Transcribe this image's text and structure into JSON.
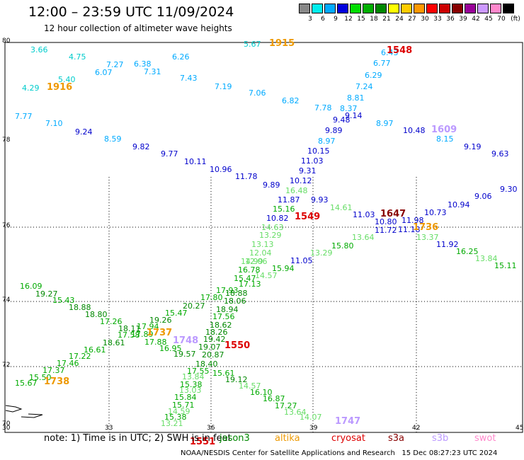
{
  "title": "12:00 – 23:59 UTC 11/09/2024",
  "subtitle": "12 hour collection of altimeter wave heights",
  "scale": {
    "labels": [
      "3",
      "6",
      "9",
      "12",
      "15",
      "18",
      "21",
      "24",
      "27",
      "30",
      "33",
      "36",
      "39",
      "42",
      "45",
      "70"
    ],
    "unit": "(ft)",
    "colors": [
      "#888888",
      "#00eeee",
      "#00aaff",
      "#0000dd",
      "#00dd00",
      "#00b000",
      "#008800",
      "#ffff00",
      "#ffcc00",
      "#ff9900",
      "#ff0000",
      "#cc0000",
      "#880000",
      "#990099",
      "#cc99ff",
      "#ff88cc",
      "#000000"
    ]
  },
  "axes": {
    "lon": [
      "30",
      "33",
      "36",
      "39",
      "42",
      "45"
    ],
    "lat": [
      "80",
      "78",
      "76",
      "74",
      "72",
      "70"
    ]
  },
  "observations": [
    {
      "v": "3.66",
      "c": "#00cccc"
    },
    {
      "v": "4.75",
      "c": "#00cccc"
    },
    {
      "v": "7.27",
      "c": "#00aaff"
    },
    {
      "v": "6.38",
      "c": "#00aaff"
    },
    {
      "v": "6.26",
      "c": "#00aaff"
    },
    {
      "v": "5.67",
      "c": "#00cccc"
    },
    {
      "v": "6.07",
      "c": "#00aaff"
    },
    {
      "v": "7.31",
      "c": "#00aaff"
    },
    {
      "v": "5.40",
      "c": "#00cccc"
    },
    {
      "v": "4.29",
      "c": "#00cccc"
    },
    {
      "v": "7.43",
      "c": "#00aaff"
    },
    {
      "v": "7.19",
      "c": "#00aaff"
    },
    {
      "v": "7.06",
      "c": "#00aaff"
    },
    {
      "v": "6.82",
      "c": "#00aaff"
    },
    {
      "v": "7.77",
      "c": "#00aaff"
    },
    {
      "v": "7.10",
      "c": "#00aaff"
    },
    {
      "v": "6.43",
      "c": "#00aaff"
    },
    {
      "v": "6.77",
      "c": "#00aaff"
    },
    {
      "v": "6.29",
      "c": "#00aaff"
    },
    {
      "v": "7.24",
      "c": "#00aaff"
    },
    {
      "v": "8.81",
      "c": "#00aaff"
    },
    {
      "v": "7.78",
      "c": "#00aaff"
    },
    {
      "v": "8.37",
      "c": "#00aaff"
    },
    {
      "v": "9.14",
      "c": "#0000cc"
    },
    {
      "v": "9.48",
      "c": "#0000cc"
    },
    {
      "v": "8.97",
      "c": "#00aaff"
    },
    {
      "v": "9.89",
      "c": "#0000cc"
    },
    {
      "v": "8.97",
      "c": "#00aaff"
    },
    {
      "v": "9.24",
      "c": "#0000cc"
    },
    {
      "v": "8.59",
      "c": "#00aaff"
    },
    {
      "v": "9.82",
      "c": "#0000cc"
    },
    {
      "v": "9.77",
      "c": "#0000cc"
    },
    {
      "v": "10.11",
      "c": "#0000cc"
    },
    {
      "v": "10.96",
      "c": "#0000cc"
    },
    {
      "v": "11.78",
      "c": "#0000cc"
    },
    {
      "v": "10.15",
      "c": "#0000cc"
    },
    {
      "v": "11.03",
      "c": "#0000cc"
    },
    {
      "v": "9.31",
      "c": "#0000cc"
    },
    {
      "v": "10.12",
      "c": "#0000cc"
    },
    {
      "v": "9.89",
      "c": "#0000cc"
    },
    {
      "v": "10.48",
      "c": "#0000cc"
    },
    {
      "v": "8.15",
      "c": "#00aaff"
    },
    {
      "v": "9.19",
      "c": "#0000cc"
    },
    {
      "v": "9.63",
      "c": "#0000cc"
    },
    {
      "v": "16.48",
      "c": "#66dd66"
    },
    {
      "v": "11.87",
      "c": "#0000cc"
    },
    {
      "v": "9.93",
      "c": "#0000cc"
    },
    {
      "v": "15.16",
      "c": "#00aa00"
    },
    {
      "v": "14.61",
      "c": "#66dd66"
    },
    {
      "v": "10.82",
      "c": "#0000cc"
    },
    {
      "v": "11.03",
      "c": "#0000cc"
    },
    {
      "v": "10.80",
      "c": "#0000cc"
    },
    {
      "v": "11.98",
      "c": "#0000cc"
    },
    {
      "v": "10.73",
      "c": "#0000cc"
    },
    {
      "v": "10.94",
      "c": "#0000cc"
    },
    {
      "v": "9.06",
      "c": "#0000cc"
    },
    {
      "v": "9.30",
      "c": "#0000cc"
    },
    {
      "v": "14.63",
      "c": "#66dd66"
    },
    {
      "v": "11.72",
      "c": "#0000cc"
    },
    {
      "v": "11.18",
      "c": "#0000cc"
    },
    {
      "v": "13.29",
      "c": "#66dd66"
    },
    {
      "v": "13.64",
      "c": "#66dd66"
    },
    {
      "v": "13.37",
      "c": "#66dd66"
    },
    {
      "v": "13.13",
      "c": "#66dd66"
    },
    {
      "v": "15.80",
      "c": "#00aa00"
    },
    {
      "v": "11.92",
      "c": "#0000cc"
    },
    {
      "v": "12.04",
      "c": "#66dd66"
    },
    {
      "v": "13.29",
      "c": "#66dd66"
    },
    {
      "v": "16.25",
      "c": "#00aa00"
    },
    {
      "v": "12.06",
      "c": "#66dd66"
    },
    {
      "v": "13.84",
      "c": "#66dd66"
    },
    {
      "v": "14.99",
      "c": "#66dd66"
    },
    {
      "v": "11.05",
      "c": "#0000cc"
    },
    {
      "v": "15.11",
      "c": "#00aa00"
    },
    {
      "v": "16.78",
      "c": "#00aa00"
    },
    {
      "v": "15.94",
      "c": "#00aa00"
    },
    {
      "v": "15.47",
      "c": "#00aa00"
    },
    {
      "v": "14.57",
      "c": "#66dd66"
    },
    {
      "v": "17.13",
      "c": "#00aa00"
    },
    {
      "v": "16.09",
      "c": "#00aa00"
    },
    {
      "v": "17.93",
      "c": "#00aa00"
    },
    {
      "v": "19.27",
      "c": "#008800"
    },
    {
      "v": "18.88",
      "c": "#008800"
    },
    {
      "v": "17.80",
      "c": "#00aa00"
    },
    {
      "v": "15.43",
      "c": "#00aa00"
    },
    {
      "v": "18.06",
      "c": "#008800"
    },
    {
      "v": "18.88",
      "c": "#008800"
    },
    {
      "v": "20.27",
      "c": "#008800"
    },
    {
      "v": "18.94",
      "c": "#008800"
    },
    {
      "v": "18.80",
      "c": "#008800"
    },
    {
      "v": "15.47",
      "c": "#00aa00"
    },
    {
      "v": "17.56",
      "c": "#00aa00"
    },
    {
      "v": "17.26",
      "c": "#00aa00"
    },
    {
      "v": "19.26",
      "c": "#008800"
    },
    {
      "v": "18.62",
      "c": "#008800"
    },
    {
      "v": "18.11",
      "c": "#008800"
    },
    {
      "v": "17.94",
      "c": "#00aa00"
    },
    {
      "v": "17.58",
      "c": "#00aa00"
    },
    {
      "v": "17.89",
      "c": "#00aa00"
    },
    {
      "v": "18.26",
      "c": "#008800"
    },
    {
      "v": "18.61",
      "c": "#008800"
    },
    {
      "v": "17.88",
      "c": "#00aa00"
    },
    {
      "v": "19.42",
      "c": "#008800"
    },
    {
      "v": "16.61",
      "c": "#00aa00"
    },
    {
      "v": "16.95",
      "c": "#00aa00"
    },
    {
      "v": "19.07",
      "c": "#008800"
    },
    {
      "v": "17.22",
      "c": "#00aa00"
    },
    {
      "v": "19.57",
      "c": "#008800"
    },
    {
      "v": "20.87",
      "c": "#008800"
    },
    {
      "v": "17.46",
      "c": "#00aa00"
    },
    {
      "v": "18.40",
      "c": "#008800"
    },
    {
      "v": "17.37",
      "c": "#00aa00"
    },
    {
      "v": "17.55",
      "c": "#00aa00"
    },
    {
      "v": "15.61",
      "c": "#00aa00"
    },
    {
      "v": "15.50",
      "c": "#00aa00"
    },
    {
      "v": "13.84",
      "c": "#66dd66"
    },
    {
      "v": "19.12",
      "c": "#008800"
    },
    {
      "v": "15.67",
      "c": "#00aa00"
    },
    {
      "v": "15.38",
      "c": "#00aa00"
    },
    {
      "v": "14.57",
      "c": "#66dd66"
    },
    {
      "v": "13.03",
      "c": "#66dd66"
    },
    {
      "v": "16.10",
      "c": "#00aa00"
    },
    {
      "v": "15.84",
      "c": "#00aa00"
    },
    {
      "v": "16.87",
      "c": "#00aa00"
    },
    {
      "v": "15.71",
      "c": "#00aa00"
    },
    {
      "v": "17.27",
      "c": "#00aa00"
    },
    {
      "v": "14.59",
      "c": "#66dd66"
    },
    {
      "v": "13.64",
      "c": "#66dd66"
    },
    {
      "v": "15.38",
      "c": "#00aa00"
    },
    {
      "v": "14.07",
      "c": "#66dd66"
    },
    {
      "v": "13.21",
      "c": "#66dd66"
    }
  ],
  "times": [
    {
      "v": "1915",
      "c": "#ee9900"
    },
    {
      "v": "1548",
      "c": "#dd0000"
    },
    {
      "v": "1916",
      "c": "#ee9900"
    },
    {
      "v": "1609",
      "c": "#bb99ff"
    },
    {
      "v": "1549",
      "c": "#dd0000"
    },
    {
      "v": "1647",
      "c": "#880000"
    },
    {
      "v": "1736",
      "c": "#ee9900"
    },
    {
      "v": "1737",
      "c": "#ee9900"
    },
    {
      "v": "1748",
      "c": "#bb99ff"
    },
    {
      "v": "1550",
      "c": "#dd0000"
    },
    {
      "v": "1738",
      "c": "#ee9900"
    },
    {
      "v": "1551",
      "c": "#dd0000"
    },
    {
      "v": "1747",
      "c": "#bb99ff"
    }
  ],
  "footer": "note: 1) Time is in UTC; 2) SWH is in feet",
  "legend": [
    {
      "v": "jason3",
      "c": "#008800"
    },
    {
      "v": "altika",
      "c": "#ee9900"
    },
    {
      "v": "cryosat",
      "c": "#dd0000"
    },
    {
      "v": "s3a",
      "c": "#880000"
    },
    {
      "v": "s3b",
      "c": "#bb99ff"
    },
    {
      "v": "swot",
      "c": "#ff88cc"
    }
  ],
  "credit": "NOAA/NESDIS Center for Satellite Applications and Research",
  "timestamp": "15 Dec 08:27:23 UTC 2024"
}
